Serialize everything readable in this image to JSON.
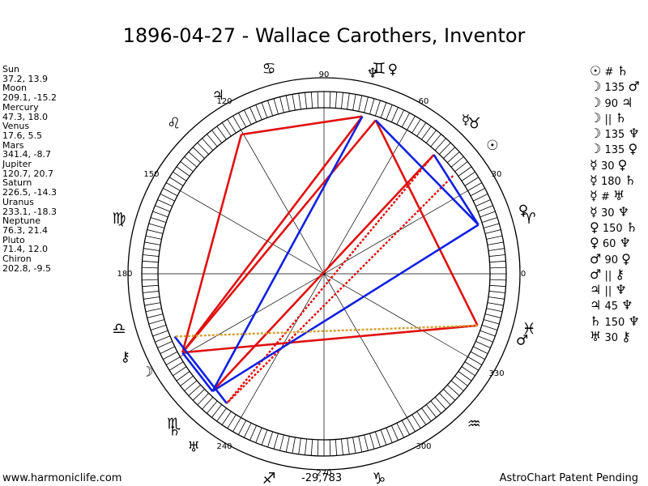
{
  "title": "1896-04-27 - Wallace Carothers, Inventor",
  "planets": [
    {
      "name": "Sun",
      "coords": "37.2, 13.9"
    },
    {
      "name": "Moon",
      "coords": "209.1, -15.2"
    },
    {
      "name": "Mercury",
      "coords": "47.3, 18.0"
    },
    {
      "name": "Venus",
      "coords": "17.6, 5.5"
    },
    {
      "name": "Mars",
      "coords": "341.4, -8.7"
    },
    {
      "name": "Jupiter",
      "coords": "120.7, 20.7"
    },
    {
      "name": "Saturn",
      "coords": "226.5, -14.3"
    },
    {
      "name": "Uranus",
      "coords": "233.1, -18.3"
    },
    {
      "name": "Neptune",
      "coords": "76.3, 21.4"
    },
    {
      "name": "Pluto",
      "coords": "71.4, 12.0"
    },
    {
      "name": "Chiron",
      "coords": "202.8, -9.5"
    }
  ],
  "aspects": [
    {
      "p1": "☉",
      "a": "#",
      "p2": "♄"
    },
    {
      "p1": "☽",
      "a": "135",
      "p2": "♂"
    },
    {
      "p1": "☽",
      "a": "90",
      "p2": "♃"
    },
    {
      "p1": "☽",
      "a": "||",
      "p2": "♄"
    },
    {
      "p1": "☽",
      "a": "135",
      "p2": "♆"
    },
    {
      "p1": "☽",
      "a": "135",
      "p2": "♀"
    },
    {
      "p1": "☿",
      "a": "30",
      "p2": "♀"
    },
    {
      "p1": "☿",
      "a": "180",
      "p2": "♄"
    },
    {
      "p1": "☿",
      "a": "#",
      "p2": "♅"
    },
    {
      "p1": "☿",
      "a": "30",
      "p2": "♆"
    },
    {
      "p1": "♀",
      "a": "150",
      "p2": "♄"
    },
    {
      "p1": "♀",
      "a": "60",
      "p2": "♆"
    },
    {
      "p1": "♂",
      "a": "90",
      "p2": "♀"
    },
    {
      "p1": "♂",
      "a": "||",
      "p2": "⚷"
    },
    {
      "p1": "♃",
      "a": "||",
      "p2": "♆"
    },
    {
      "p1": "♃",
      "a": "45",
      "p2": "♆"
    },
    {
      "p1": "♄",
      "a": "150",
      "p2": "♆"
    },
    {
      "p1": "♅",
      "a": "30",
      "p2": "⚷"
    }
  ],
  "chart_data": {
    "type": "astrology-wheel",
    "degree_labels": [
      {
        "deg": 0,
        "label": "0"
      },
      {
        "deg": 30,
        "label": "30"
      },
      {
        "deg": 60,
        "label": "60"
      },
      {
        "deg": 90,
        "label": "90"
      },
      {
        "deg": 120,
        "label": "120"
      },
      {
        "deg": 150,
        "label": "150"
      },
      {
        "deg": 180,
        "label": "180"
      },
      {
        "deg": 240,
        "label": "240"
      },
      {
        "deg": 270,
        "label": "270"
      },
      {
        "deg": 300,
        "label": "300"
      },
      {
        "deg": 330,
        "label": "330"
      }
    ],
    "zodiac_signs": [
      {
        "glyph": "♈",
        "deg": 15
      },
      {
        "glyph": "♉",
        "deg": 45
      },
      {
        "glyph": "♊",
        "deg": 75
      },
      {
        "glyph": "♋",
        "deg": 105
      },
      {
        "glyph": "♌",
        "deg": 135
      },
      {
        "glyph": "♍",
        "deg": 165
      },
      {
        "glyph": "♎",
        "deg": 195
      },
      {
        "glyph": "♏",
        "deg": 225
      },
      {
        "glyph": "♐",
        "deg": 255
      },
      {
        "glyph": "♑",
        "deg": 285
      },
      {
        "glyph": "♒",
        "deg": 315
      },
      {
        "glyph": "♓",
        "deg": 345
      }
    ],
    "bodies": [
      {
        "name": "Sun",
        "glyph": "☉",
        "deg": 37.2
      },
      {
        "name": "Moon",
        "glyph": "☽",
        "deg": 209.1
      },
      {
        "name": "Mercury",
        "glyph": "☿",
        "deg": 47.3
      },
      {
        "name": "Venus",
        "glyph": "♀",
        "deg": 17.6
      },
      {
        "name": "Mars",
        "glyph": "♂",
        "deg": 341.4
      },
      {
        "name": "Jupiter",
        "glyph": "♃",
        "deg": 120.7
      },
      {
        "name": "Saturn",
        "glyph": "♄",
        "deg": 226.5
      },
      {
        "name": "Uranus",
        "glyph": "♅",
        "deg": 233.1
      },
      {
        "name": "Neptune",
        "glyph": "♆",
        "deg": 76.3
      },
      {
        "name": "Pluto",
        "glyph": "♀",
        "deg": 71.4
      },
      {
        "name": "Chiron",
        "glyph": "⚷",
        "deg": 202.8
      }
    ],
    "aspect_lines": [
      {
        "from": 120.7,
        "to": 76.3,
        "color": "#e01010",
        "style": "solid"
      },
      {
        "from": 120.7,
        "to": 209.1,
        "color": "#e01010",
        "style": "solid"
      },
      {
        "from": 209.1,
        "to": 76.3,
        "color": "#e01010",
        "style": "solid"
      },
      {
        "from": 209.1,
        "to": 71.4,
        "color": "#e01010",
        "style": "solid"
      },
      {
        "from": 209.1,
        "to": 341.4,
        "color": "#e01010",
        "style": "solid"
      },
      {
        "from": 71.4,
        "to": 341.4,
        "color": "#e01010",
        "style": "solid"
      },
      {
        "from": 47.3,
        "to": 226.5,
        "color": "#e01010",
        "style": "solid"
      },
      {
        "from": 37.2,
        "to": 233.1,
        "color": "#e01010",
        "style": "dotted"
      },
      {
        "from": 47.3,
        "to": 233.1,
        "color": "#e01010",
        "style": "dotted"
      },
      {
        "from": 76.3,
        "to": 226.5,
        "color": "#1020e0",
        "style": "solid"
      },
      {
        "from": 17.6,
        "to": 226.5,
        "color": "#1020e0",
        "style": "solid"
      },
      {
        "from": 17.6,
        "to": 71.4,
        "color": "#1020e0",
        "style": "solid"
      },
      {
        "from": 17.6,
        "to": 47.3,
        "color": "#1020e0",
        "style": "solid"
      },
      {
        "from": 233.1,
        "to": 202.8,
        "color": "#1020e0",
        "style": "solid"
      },
      {
        "from": 209.1,
        "to": 226.5,
        "color": "#1020e0",
        "style": "solid"
      },
      {
        "from": 341.4,
        "to": 202.8,
        "color": "#d4a030",
        "style": "dotted"
      }
    ]
  },
  "footer": {
    "site": "www.harmoniclife.com",
    "id": "-29,783",
    "credit": "AstroChart Patent Pending"
  }
}
